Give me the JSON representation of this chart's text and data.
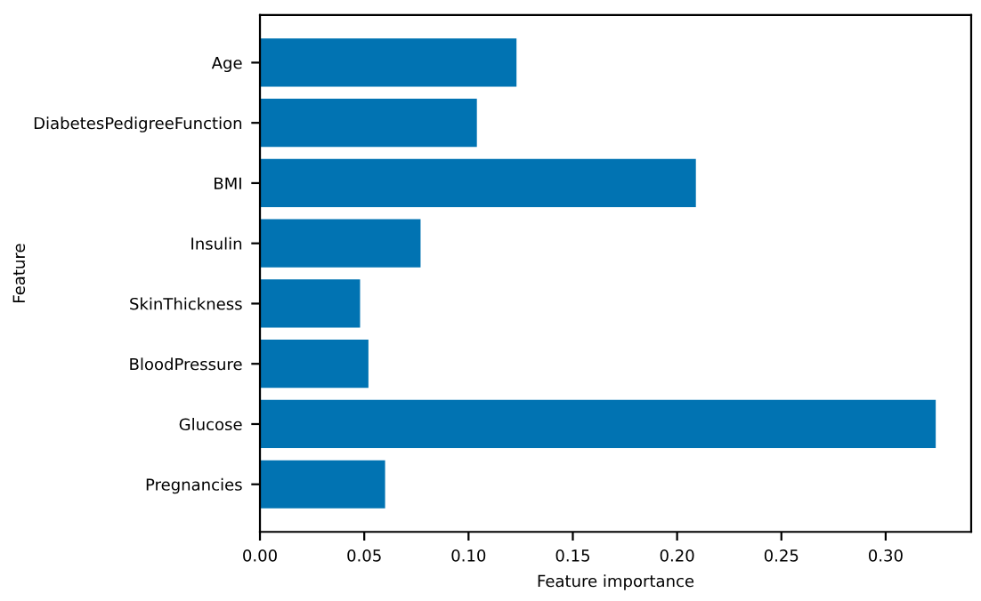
{
  "chart_data": {
    "type": "bar",
    "orientation": "horizontal",
    "xlabel": "Feature importance",
    "ylabel": "Feature",
    "categories": [
      "Age",
      "DiabetesPedigreeFunction",
      "BMI",
      "Insulin",
      "SkinThickness",
      "BloodPressure",
      "Glucose",
      "Pregnancies"
    ],
    "values": [
      0.123,
      0.104,
      0.209,
      0.077,
      0.048,
      0.052,
      0.324,
      0.06
    ],
    "color": "#0173b2",
    "xlim": [
      0,
      0.341
    ],
    "xticks": [
      {
        "value": 0,
        "label": "0.00"
      },
      {
        "value": 0.05,
        "label": "0.05"
      },
      {
        "value": 0.1,
        "label": "0.10"
      },
      {
        "value": 0.15,
        "label": "0.15"
      },
      {
        "value": 0.2,
        "label": "0.20"
      },
      {
        "value": 0.25,
        "label": "0.25"
      },
      {
        "value": 0.3,
        "label": "0.30"
      }
    ],
    "grid": false,
    "legend": false
  }
}
